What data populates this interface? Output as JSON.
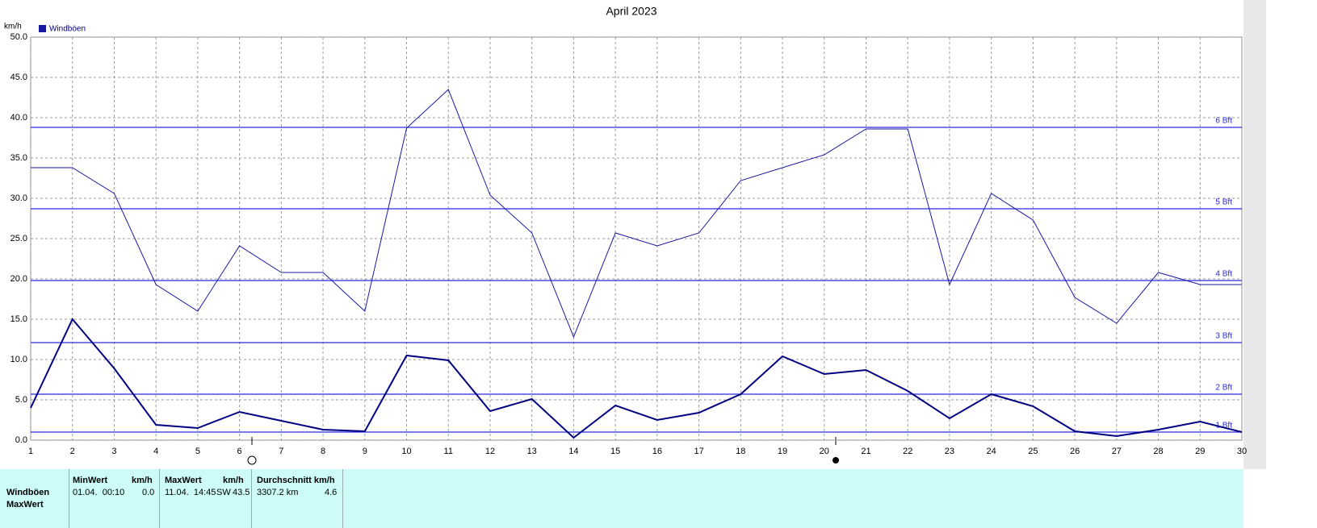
{
  "chart_data": {
    "type": "line",
    "title": "April 2023",
    "y_label": "km/h",
    "x": [
      1,
      2,
      3,
      4,
      5,
      6,
      7,
      8,
      9,
      10,
      11,
      12,
      13,
      14,
      15,
      16,
      17,
      18,
      19,
      20,
      21,
      22,
      23,
      24,
      25,
      26,
      27,
      28,
      29,
      30
    ],
    "xlim": [
      1,
      30
    ],
    "xticks": [
      1,
      2,
      3,
      4,
      5,
      6,
      7,
      8,
      9,
      10,
      11,
      12,
      13,
      14,
      15,
      16,
      17,
      18,
      19,
      20,
      21,
      22,
      23,
      24,
      25,
      26,
      27,
      28,
      29,
      30
    ],
    "ylim": [
      0,
      50
    ],
    "yticks": [
      {
        "value": 0,
        "label": "0.0"
      },
      {
        "value": 5,
        "label": "5.0"
      },
      {
        "value": 10,
        "label": "10.0"
      },
      {
        "value": 15,
        "label": "15.0"
      },
      {
        "value": 20,
        "label": "20.0"
      },
      {
        "value": 25,
        "label": "25.0"
      },
      {
        "value": 30,
        "label": "30.0"
      },
      {
        "value": 35,
        "label": "35.0"
      },
      {
        "value": 40,
        "label": "40.0"
      },
      {
        "value": 45,
        "label": "45.0"
      },
      {
        "value": 50,
        "label": "50.0"
      }
    ],
    "grid": true,
    "series": [
      {
        "name": "Windböen",
        "color": "#1a1aa0",
        "width": 1,
        "values": [
          33.8,
          33.8,
          30.6,
          19.3,
          16.0,
          24.1,
          20.8,
          20.8,
          16.0,
          38.7,
          43.5,
          30.4,
          25.7,
          12.8,
          25.7,
          24.1,
          25.7,
          32.2,
          33.8,
          35.4,
          38.6,
          38.6,
          19.3,
          30.6,
          27.3,
          17.7,
          14.5,
          20.8,
          19.3,
          19.3
        ]
      },
      {
        "color": "#000080",
        "width": 2,
        "values": [
          4.0,
          15.0,
          8.9,
          1.9,
          1.5,
          3.5,
          2.4,
          1.3,
          1.1,
          10.5,
          9.9,
          3.6,
          5.1,
          0.3,
          4.3,
          2.5,
          3.4,
          5.7,
          10.4,
          8.2,
          8.7,
          6.1,
          2.7,
          5.7,
          4.2,
          1.1,
          0.5,
          1.3,
          2.3,
          1.0
        ]
      }
    ],
    "reference_lines": [
      {
        "value": 1.0,
        "label": "1 Bft"
      },
      {
        "value": 5.7,
        "label": "2 Bft"
      },
      {
        "value": 12.1,
        "label": "3 Bft"
      },
      {
        "value": 19.8,
        "label": "4 Bft"
      },
      {
        "value": 28.7,
        "label": "5 Bft"
      },
      {
        "value": 38.8,
        "label": "6 Bft"
      }
    ],
    "reference_color": "#2a2ae0"
  },
  "table": {
    "headers": [
      "MinWert",
      "km/h",
      "MaxWert",
      "km/h",
      "Durchschnitt km/h"
    ],
    "row_labels": [
      "Windböen",
      "MaxWert"
    ],
    "row": [
      "01.04.  00:10",
      "0.0",
      "11.04.  14:45",
      "SW",
      "43.5",
      "3307.2 km",
      "4.6"
    ]
  }
}
